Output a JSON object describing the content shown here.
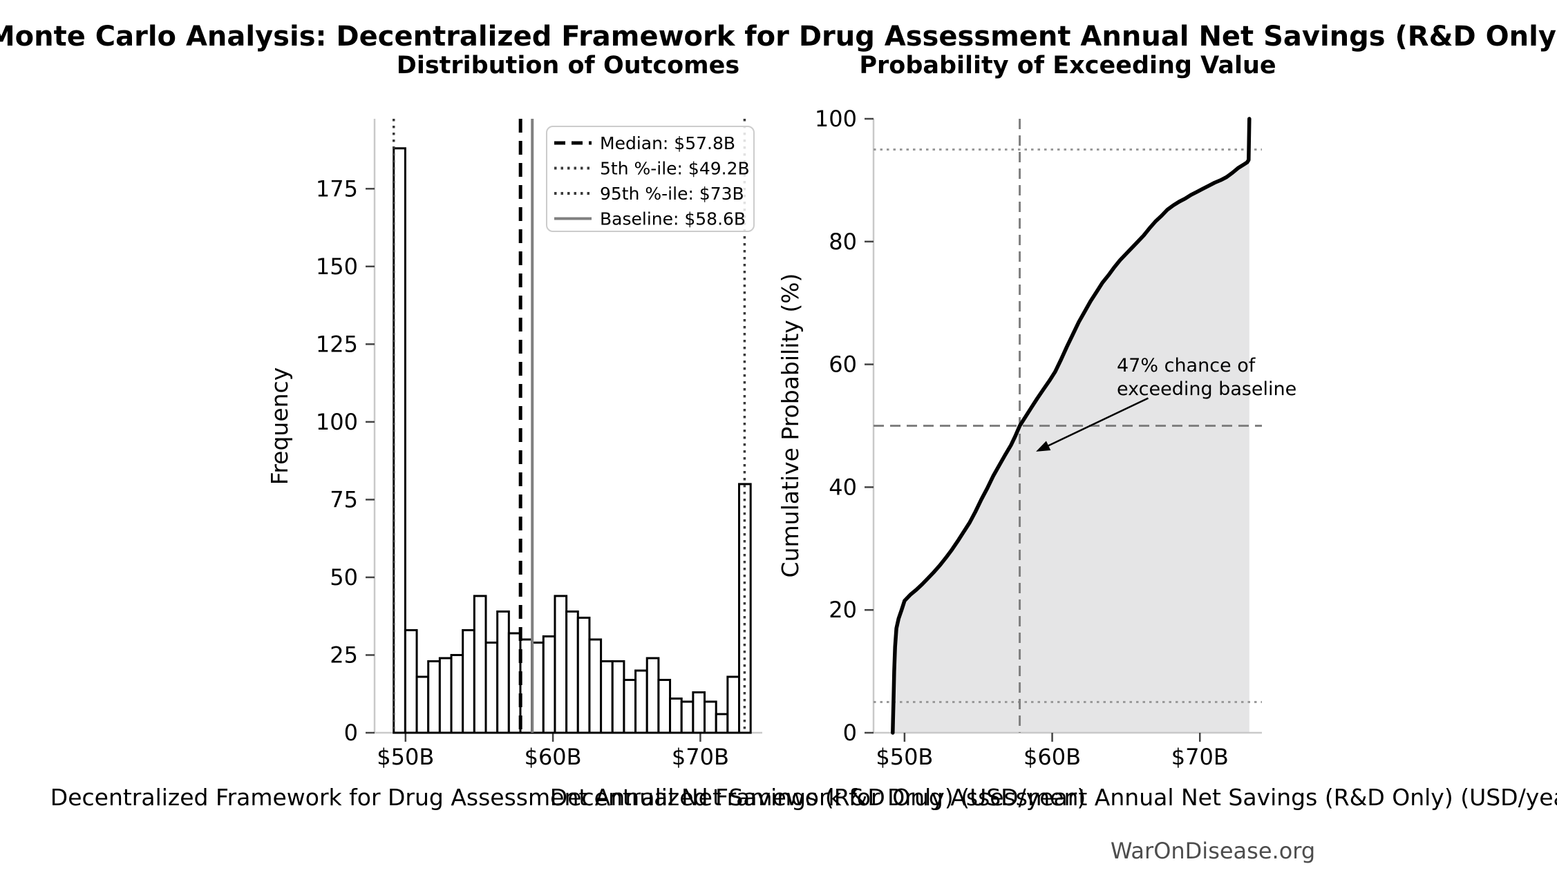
{
  "page": {
    "title": "Monte Carlo Analysis: Decentralized Framework for Drug Assessment Annual Net Savings (R&D Only)",
    "footer": "WarOnDisease.org"
  },
  "chart_data": [
    {
      "type": "bar",
      "title": "Distribution of Outcomes",
      "xlabel": "Decentralized Framework for Drug Assessment Annual Net Savings (R&D Only) (USD/year)",
      "ylabel": "Frequency",
      "bin_start": 49.2,
      "bin_width": 0.781,
      "units": "USD billions per year",
      "counts": [
        188,
        33,
        18,
        23,
        24,
        25,
        33,
        44,
        29,
        39,
        32,
        30,
        29,
        31,
        44,
        39,
        37,
        30,
        23,
        23,
        17,
        20,
        24,
        17,
        11,
        10,
        13,
        10,
        6,
        18,
        80
      ],
      "total_samples": 1000,
      "bar_fill": "#ffffff",
      "bar_edge": "#000000",
      "x_ticks": [
        {
          "v": 50,
          "label": "$50B"
        },
        {
          "v": 60,
          "label": "$60B"
        },
        {
          "v": 70,
          "label": "$70B"
        }
      ],
      "y_ticks": [
        {
          "v": 0,
          "label": "0"
        },
        {
          "v": 25,
          "label": "25"
        },
        {
          "v": 50,
          "label": "50"
        },
        {
          "v": 75,
          "label": "75"
        },
        {
          "v": 100,
          "label": "100"
        },
        {
          "v": 125,
          "label": "125"
        },
        {
          "v": 150,
          "label": "150"
        },
        {
          "v": 175,
          "label": "175"
        }
      ],
      "xlim": [
        47.9,
        74.2
      ],
      "ylim": [
        0,
        197.5
      ],
      "grid": false,
      "legend_position": "upper right",
      "ref_lines": [
        {
          "label": "Median: $57.8B",
          "value": 57.8,
          "style": "dashed",
          "color": "#000000",
          "width": 5
        },
        {
          "label": "5th %-ile: $49.2B",
          "value": 49.2,
          "style": "dotted",
          "color": "#3a3a3a",
          "width": 3.5
        },
        {
          "label": "95th %-ile: $73B",
          "value": 73.0,
          "style": "dotted",
          "color": "#3a3a3a",
          "width": 3.5
        },
        {
          "label": "Baseline: $58.6B",
          "value": 58.6,
          "style": "solid",
          "color": "#808080",
          "width": 4
        }
      ]
    },
    {
      "type": "area",
      "title": "Probability of Exceeding Value",
      "xlabel": "Decentralized Framework for Drug Assessment Annual Net Savings (R&D Only) (USD/year)",
      "ylabel": "Cumulative Probability (%)",
      "line_color": "#000000",
      "fill_color": "#e5e5e6",
      "x_ticks": [
        {
          "v": 50,
          "label": "$50B"
        },
        {
          "v": 60,
          "label": "$60B"
        },
        {
          "v": 70,
          "label": "$70B"
        }
      ],
      "y_ticks": [
        {
          "v": 0,
          "label": "0"
        },
        {
          "v": 20,
          "label": "20"
        },
        {
          "v": 40,
          "label": "40"
        },
        {
          "v": 60,
          "label": "60"
        },
        {
          "v": 80,
          "label": "80"
        },
        {
          "v": 100,
          "label": "100"
        }
      ],
      "xlim": [
        47.9,
        74.2
      ],
      "ylim": [
        0,
        100
      ],
      "grid": false,
      "curve": [
        [
          49.2,
          0
        ],
        [
          49.22,
          2
        ],
        [
          49.26,
          6
        ],
        [
          49.3,
          10
        ],
        [
          49.36,
          14
        ],
        [
          49.45,
          17
        ],
        [
          49.6,
          18.6
        ],
        [
          49.8,
          20
        ],
        [
          50.0,
          21.5
        ],
        [
          50.4,
          22.5
        ],
        [
          50.8,
          23.3
        ],
        [
          51.2,
          24.2
        ],
        [
          51.6,
          25.2
        ],
        [
          52.0,
          26.2
        ],
        [
          52.4,
          27.3
        ],
        [
          52.8,
          28.5
        ],
        [
          53.2,
          29.8
        ],
        [
          53.6,
          31.2
        ],
        [
          54.0,
          32.7
        ],
        [
          54.4,
          34.2
        ],
        [
          54.8,
          36.0
        ],
        [
          55.2,
          38.0
        ],
        [
          55.6,
          39.8
        ],
        [
          56.0,
          41.8
        ],
        [
          56.4,
          43.5
        ],
        [
          56.8,
          45.2
        ],
        [
          57.2,
          46.8
        ],
        [
          57.5,
          48.3
        ],
        [
          57.8,
          50.0
        ],
        [
          58.2,
          51.5
        ],
        [
          58.6,
          53.0
        ],
        [
          59.0,
          54.5
        ],
        [
          59.4,
          55.9
        ],
        [
          59.8,
          57.3
        ],
        [
          60.2,
          58.8
        ],
        [
          60.6,
          60.8
        ],
        [
          61.0,
          62.9
        ],
        [
          61.4,
          64.9
        ],
        [
          61.8,
          66.9
        ],
        [
          62.2,
          68.6
        ],
        [
          62.6,
          70.3
        ],
        [
          63.0,
          71.8
        ],
        [
          63.4,
          73.3
        ],
        [
          63.8,
          74.5
        ],
        [
          64.2,
          75.8
        ],
        [
          64.6,
          77.0
        ],
        [
          65.0,
          78.0
        ],
        [
          65.4,
          79.0
        ],
        [
          65.8,
          80.0
        ],
        [
          66.2,
          81.0
        ],
        [
          66.6,
          82.2
        ],
        [
          67.0,
          83.3
        ],
        [
          67.4,
          84.2
        ],
        [
          67.8,
          85.2
        ],
        [
          68.2,
          85.9
        ],
        [
          68.6,
          86.5
        ],
        [
          69.0,
          87.0
        ],
        [
          69.4,
          87.6
        ],
        [
          69.8,
          88.1
        ],
        [
          70.2,
          88.6
        ],
        [
          70.6,
          89.1
        ],
        [
          71.0,
          89.6
        ],
        [
          71.4,
          90.0
        ],
        [
          71.8,
          90.5
        ],
        [
          72.2,
          91.2
        ],
        [
          72.6,
          92.0
        ],
        [
          73.0,
          92.6
        ],
        [
          73.2,
          92.9
        ],
        [
          73.3,
          93.3
        ],
        [
          73.32,
          96
        ],
        [
          73.35,
          100
        ]
      ],
      "guides": [
        {
          "axis": "y",
          "value": 5,
          "style": "dotted",
          "color": "#999999"
        },
        {
          "axis": "y",
          "value": 95,
          "style": "dotted",
          "color": "#999999"
        },
        {
          "axis": "y",
          "value": 50,
          "style": "dashed",
          "color": "#808080"
        },
        {
          "axis": "x",
          "value": 57.8,
          "style": "dashed",
          "color": "#808080"
        }
      ],
      "annotation": {
        "lines": [
          "47% chance of",
          "exceeding baseline"
        ],
        "arrow_from": [
          66.5,
          54.5
        ],
        "arrow_to": [
          58.9,
          45.8
        ]
      }
    }
  ]
}
